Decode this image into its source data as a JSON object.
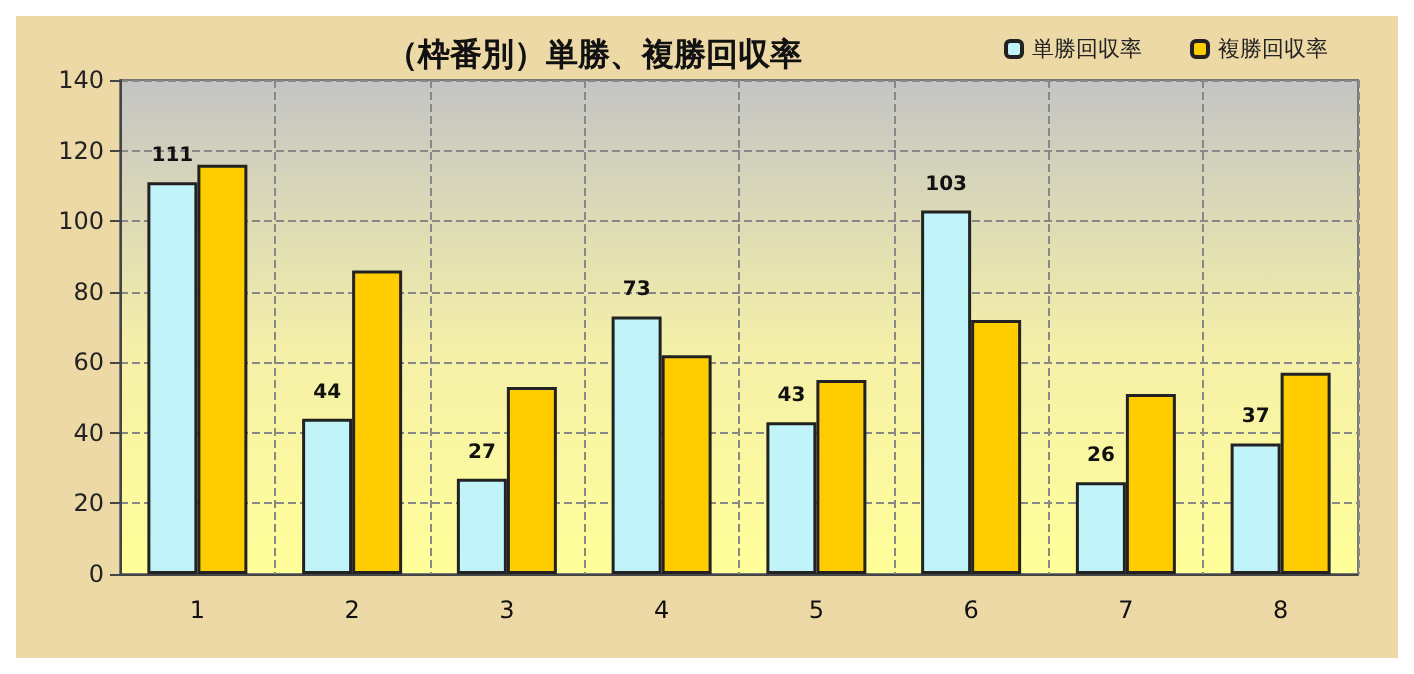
{
  "chart_data": {
    "type": "bar",
    "title": "（枠番別）単勝、複勝回収率",
    "categories": [
      "1",
      "2",
      "3",
      "4",
      "5",
      "6",
      "7",
      "8"
    ],
    "series": [
      {
        "name": "単勝回収率",
        "color": "#c0f4f8",
        "values": [
          111,
          44,
          27,
          73,
          43,
          103,
          26,
          37
        ],
        "value_labels": [
          "111",
          "44",
          "27",
          "73",
          "43",
          "103",
          "26",
          "37"
        ]
      },
      {
        "name": "複勝回収率",
        "color": "#ffcc00",
        "values": [
          116,
          86,
          53,
          62,
          55,
          72,
          51,
          57
        ]
      }
    ],
    "ylim": [
      0,
      140
    ],
    "yticks": [
      0,
      20,
      40,
      60,
      80,
      100,
      120,
      140
    ],
    "grid": true,
    "legend": "top right"
  }
}
